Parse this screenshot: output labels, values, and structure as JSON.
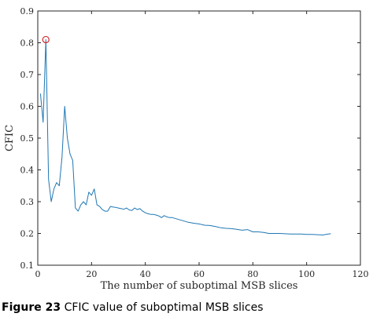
{
  "caption": {
    "figure_label": "Figure 23",
    "text": "CFIC value of suboptimal MSB slices"
  },
  "colors": {
    "series_line": "#1f77b4",
    "highlight_marker": "#d62728",
    "axis": "#262626"
  },
  "chart_data": {
    "type": "line",
    "title": "",
    "xlabel": "The number of suboptimal MSB slices",
    "ylabel": "CFIC",
    "xlim": [
      0,
      120
    ],
    "ylim": [
      0.1,
      0.9
    ],
    "xticks": [
      0,
      20,
      40,
      60,
      80,
      100,
      120
    ],
    "yticks": [
      0.1,
      0.2,
      0.3,
      0.4,
      0.5,
      0.6,
      0.7,
      0.8,
      0.9
    ],
    "grid": false,
    "series": [
      {
        "x": [
          1,
          2,
          3,
          4,
          5,
          6,
          7,
          8,
          9,
          10,
          11,
          12,
          13,
          14,
          15,
          16,
          17,
          18,
          19,
          20,
          21,
          22,
          23,
          24,
          25,
          26,
          27,
          28,
          29,
          30,
          31,
          32,
          33,
          34,
          35,
          36,
          37,
          38,
          39,
          40,
          41,
          42,
          43,
          44,
          45,
          46,
          47,
          48,
          49,
          50,
          52,
          54,
          56,
          58,
          60,
          62,
          64,
          66,
          68,
          70,
          72,
          74,
          76,
          78,
          80,
          82,
          84,
          86,
          88,
          90,
          92,
          94,
          96,
          98,
          100,
          102,
          104,
          106,
          108,
          109
        ],
        "y": [
          0.64,
          0.55,
          0.81,
          0.37,
          0.3,
          0.34,
          0.36,
          0.35,
          0.44,
          0.6,
          0.5,
          0.45,
          0.43,
          0.28,
          0.27,
          0.29,
          0.3,
          0.29,
          0.33,
          0.32,
          0.34,
          0.29,
          0.285,
          0.275,
          0.27,
          0.27,
          0.285,
          0.283,
          0.282,
          0.28,
          0.278,
          0.276,
          0.28,
          0.274,
          0.272,
          0.28,
          0.275,
          0.278,
          0.27,
          0.265,
          0.262,
          0.26,
          0.26,
          0.258,
          0.255,
          0.25,
          0.256,
          0.252,
          0.25,
          0.25,
          0.245,
          0.24,
          0.235,
          0.232,
          0.23,
          0.226,
          0.225,
          0.222,
          0.218,
          0.216,
          0.215,
          0.213,
          0.21,
          0.212,
          0.205,
          0.205,
          0.203,
          0.2,
          0.2,
          0.2,
          0.199,
          0.198,
          0.198,
          0.198,
          0.197,
          0.197,
          0.196,
          0.195,
          0.198,
          0.199
        ]
      }
    ],
    "highlight_point": {
      "x": 3,
      "y": 0.81
    }
  }
}
